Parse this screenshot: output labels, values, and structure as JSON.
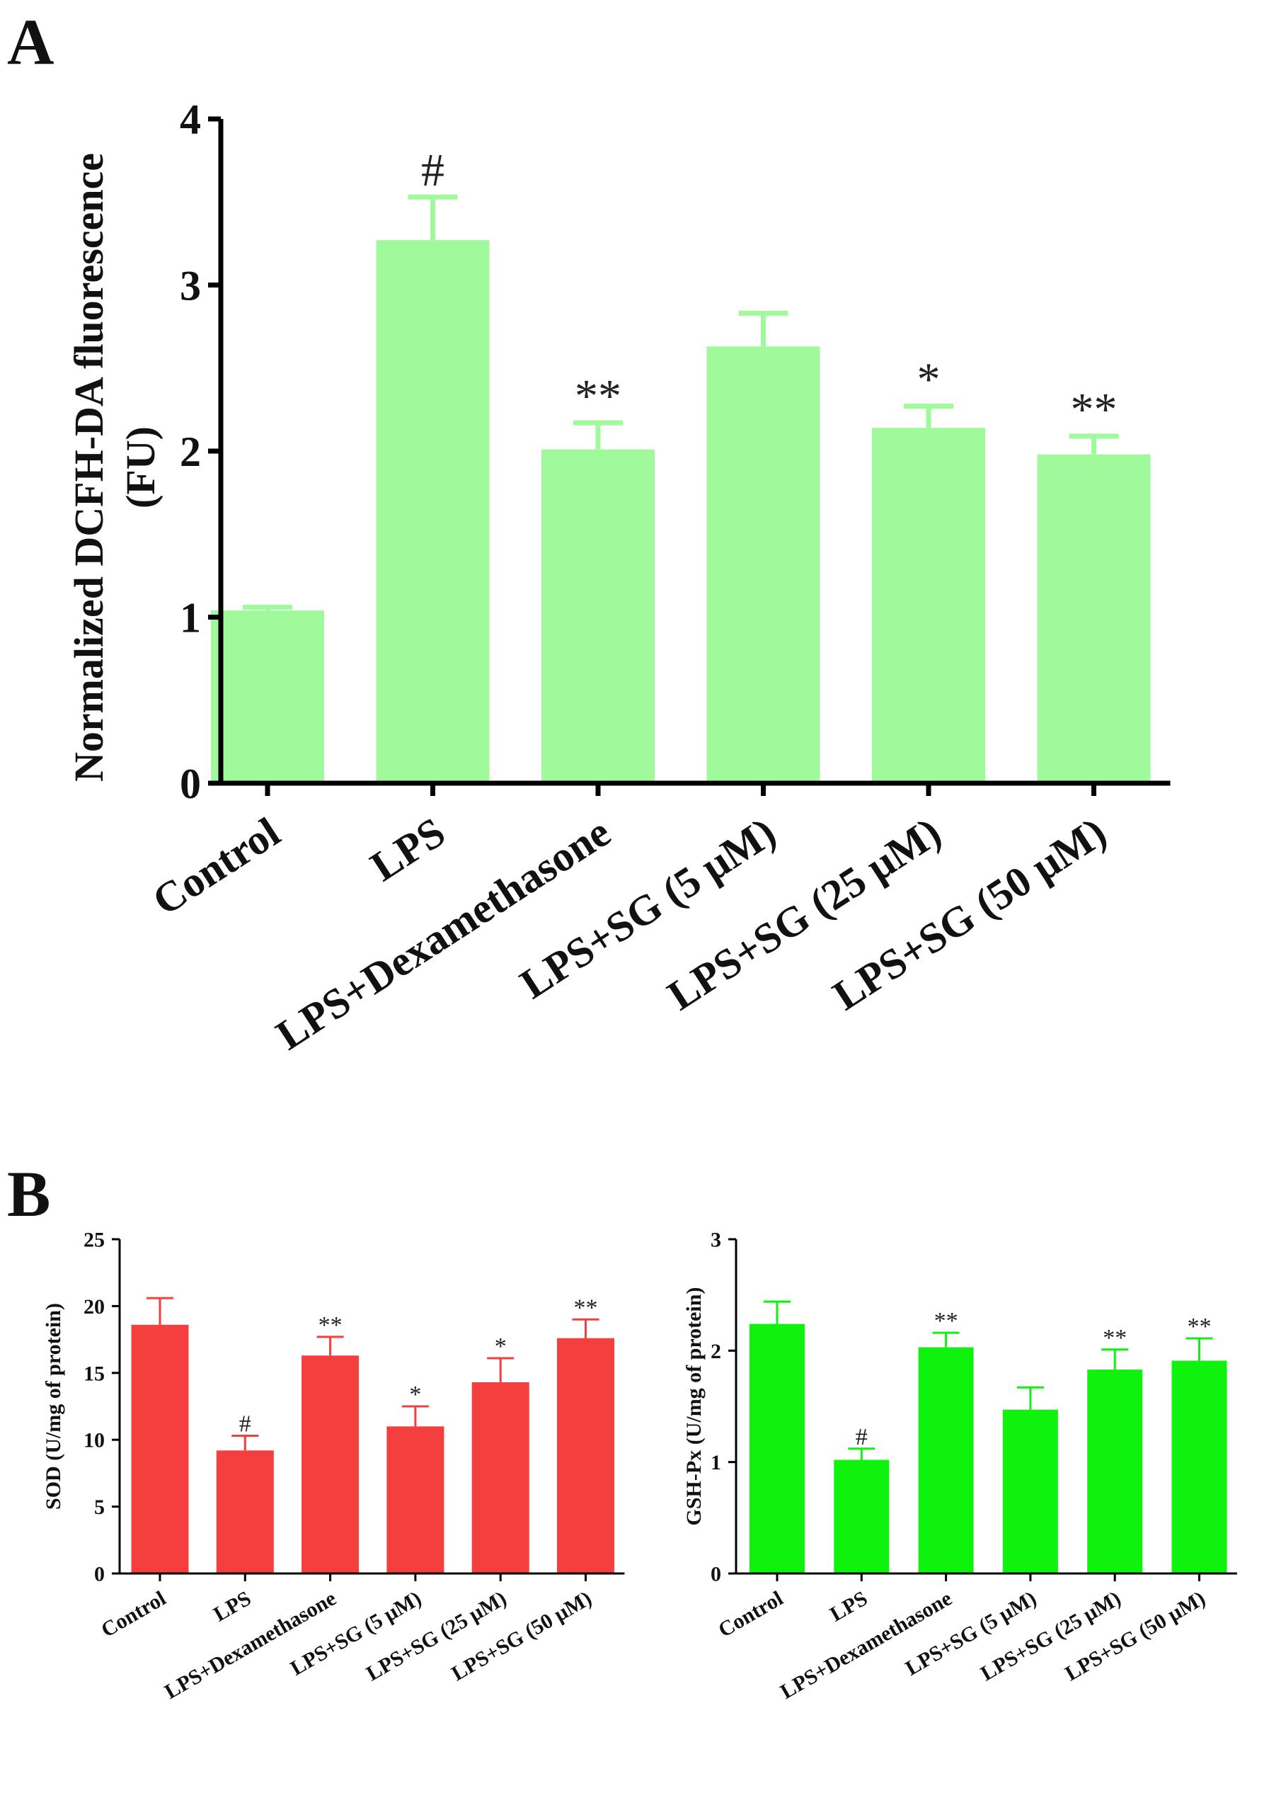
{
  "panel_labels": {
    "a": "A",
    "b": "B"
  },
  "colors": {
    "panel_a_bar": "#a0fa9c",
    "sod_bar": "#f53e3e",
    "gsh_bar": "#0ef20e",
    "axis": "#000000",
    "text": "#111111"
  },
  "chart_data": [
    {
      "id": "a",
      "type": "bar",
      "title": "",
      "xlabel": "",
      "ylabel_lines": [
        "Normalized DCFH-DA fluorescence",
        "(FU)"
      ],
      "ylim": [
        0,
        4
      ],
      "yticks": [
        0,
        1,
        2,
        3,
        4
      ],
      "ytick_labels": [
        "0",
        "1",
        "2",
        "3",
        "4"
      ],
      "categories": [
        "Control",
        "LPS",
        "LPS+Dexamethasone",
        "LPS+SG (5 μM)",
        "LPS+SG (25 μM)",
        "LPS+SG (50 μM)"
      ],
      "values": [
        1.04,
        3.27,
        2.01,
        2.63,
        2.14,
        1.98
      ],
      "errors": [
        0.02,
        0.26,
        0.16,
        0.2,
        0.13,
        0.11
      ],
      "annotations": [
        "",
        "#",
        "**",
        "",
        "*",
        "**"
      ]
    },
    {
      "id": "sod",
      "type": "bar",
      "title": "",
      "xlabel": "",
      "ylabel_lines": [
        "SOD (U/mg of protein)"
      ],
      "ylim": [
        0,
        25
      ],
      "yticks": [
        0,
        5,
        10,
        15,
        20,
        25
      ],
      "ytick_labels": [
        "0",
        "5",
        "10",
        "15",
        "20",
        "25"
      ],
      "categories": [
        "Control",
        "LPS",
        "LPS+Dexamethasone",
        "LPS+SG (5 μM)",
        "LPS+SG (25 μM)",
        "LPS+SG (50 μM)"
      ],
      "values": [
        18.6,
        9.2,
        16.3,
        11.0,
        14.3,
        17.6
      ],
      "errors": [
        2.0,
        1.1,
        1.4,
        1.5,
        1.8,
        1.4
      ],
      "annotations": [
        "",
        "#",
        "**",
        "*",
        "*",
        "**"
      ]
    },
    {
      "id": "gsh",
      "type": "bar",
      "title": "",
      "xlabel": "",
      "ylabel_lines": [
        "GSH-Px (U/mg of protein)"
      ],
      "ylim": [
        0,
        3
      ],
      "yticks": [
        0,
        1,
        2,
        3
      ],
      "ytick_labels": [
        "0",
        "1",
        "2",
        "3"
      ],
      "categories": [
        "Control",
        "LPS",
        "LPS+Dexamethasone",
        "LPS+SG (5 μM)",
        "LPS+SG (25 μM)",
        "LPS+SG (50 μM)"
      ],
      "values": [
        2.24,
        1.02,
        2.03,
        1.47,
        1.83,
        1.91
      ],
      "errors": [
        0.2,
        0.1,
        0.13,
        0.2,
        0.18,
        0.2
      ],
      "annotations": [
        "",
        "#",
        "**",
        "",
        "**",
        "**"
      ]
    }
  ]
}
